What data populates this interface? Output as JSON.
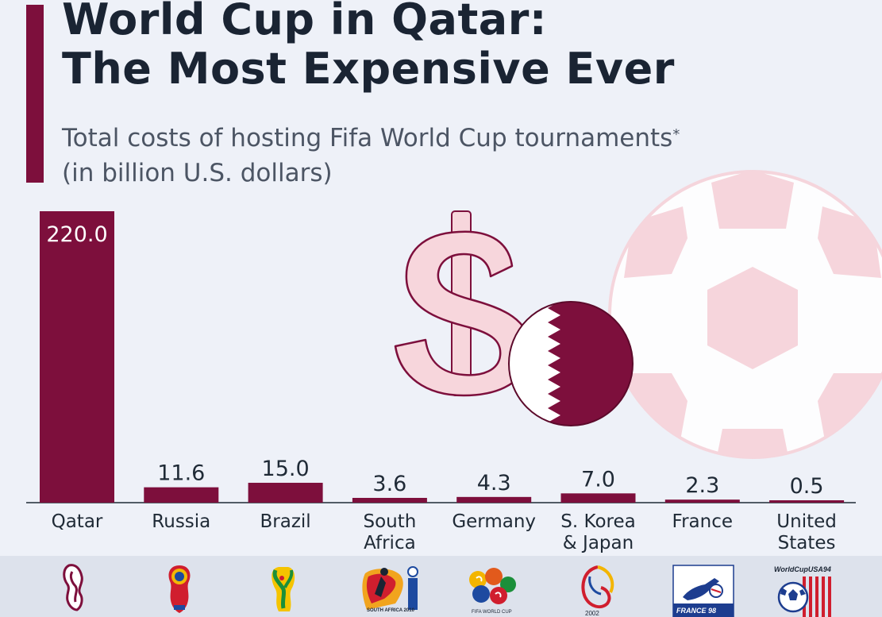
{
  "title_lines": [
    "World Cup in Qatar:",
    "The Most Expensive Ever"
  ],
  "subtitle_lines": [
    "Total costs of hosting Fifa World Cup tournaments",
    "(in billion U.S. dollars)"
  ],
  "subtitle_marker": "*",
  "colors": {
    "bar": "#7d0f3c",
    "title": "#1a2433",
    "subtitle": "#4c5564",
    "text": "#1f2a36",
    "accent": "#7d0f3c",
    "background": "#eef1f8"
  },
  "chart_data": {
    "type": "bar",
    "title": "World Cup in Qatar: The Most Expensive Ever",
    "subtitle": "Total costs of hosting Fifa World Cup tournaments* (in billion U.S. dollars)",
    "categories": [
      "Qatar",
      "Russia",
      "Brazil",
      "South Africa",
      "Germany",
      "S. Korea & Japan",
      "France",
      "United States"
    ],
    "category_lines": [
      [
        "Qatar"
      ],
      [
        "Russia"
      ],
      [
        "Brazil"
      ],
      [
        "South",
        "Africa"
      ],
      [
        "Germany"
      ],
      [
        "S. Korea",
        "& Japan"
      ],
      [
        "France"
      ],
      [
        "United",
        "States"
      ]
    ],
    "values": [
      220.0,
      11.6,
      15.0,
      3.6,
      4.3,
      7.0,
      2.3,
      0.5
    ],
    "value_labels": [
      "220.0",
      "11.6",
      "15.0",
      "3.6",
      "4.3",
      "7.0",
      "2.3",
      "0.5"
    ],
    "xlabel": "",
    "ylabel": "",
    "ylim": [
      0,
      220
    ],
    "grid": false,
    "legend": "none"
  },
  "logo_lettering": [
    "SOUTH AFRICA 2010",
    "FIFA WORLD CUP",
    "2002",
    "FRANCE 98",
    "WorldCupUSA94"
  ],
  "illustrations": [
    "dollar-sign-icon",
    "qatar-flag-icon",
    "soccer-ball-icon"
  ],
  "logos": [
    "qatar-2022-logo-icon",
    "russia-2018-logo-icon",
    "brazil-2014-logo-icon",
    "south-africa-2010-logo-icon",
    "germany-2006-logo-icon",
    "korea-japan-2002-logo-icon",
    "france-98-logo-icon",
    "usa-94-logo-icon"
  ]
}
